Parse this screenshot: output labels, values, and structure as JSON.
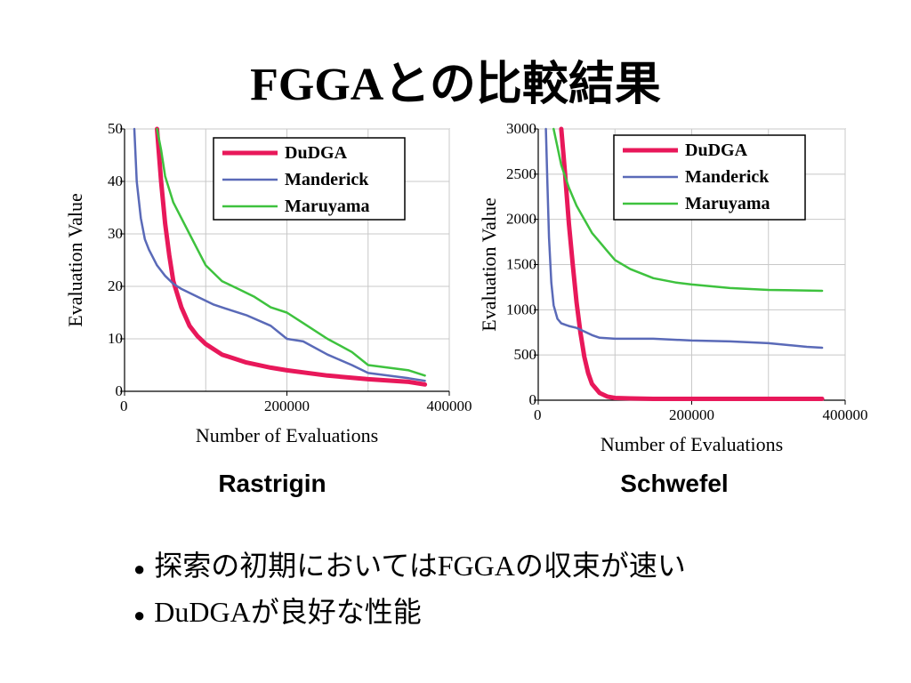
{
  "title": "FGGAとの比較結果",
  "charts": [
    {
      "caption": "Rastrigin"
    },
    {
      "caption": "Schwefel"
    }
  ],
  "bullets": [
    "探索の初期においてはFGGAの収束が速い",
    "DuDGAが良好な性能"
  ],
  "colors": {
    "DuDGA": "#e8185a",
    "Manderick": "#5a6ab8",
    "Maruyama": "#3ec23e"
  },
  "chart_data": [
    {
      "type": "line",
      "title": "",
      "xlabel": "Number of Evaluations",
      "ylabel": "Evaluation Value",
      "xlim": [
        0,
        400000
      ],
      "ylim": [
        0,
        50
      ],
      "xticks": [
        0,
        200000,
        400000
      ],
      "yticks": [
        0,
        10,
        20,
        30,
        40,
        50
      ],
      "grid": true,
      "legend": "top-right",
      "series": [
        {
          "name": "DuDGA",
          "x": [
            40000,
            45000,
            50000,
            55000,
            60000,
            70000,
            80000,
            90000,
            100000,
            120000,
            150000,
            180000,
            200000,
            250000,
            300000,
            350000,
            370000
          ],
          "y": [
            50,
            40,
            32,
            26,
            21,
            16,
            12.5,
            10.5,
            9,
            7,
            5.5,
            4.5,
            4,
            3,
            2.3,
            1.8,
            1.3
          ]
        },
        {
          "name": "Manderick",
          "x": [
            12000,
            15000,
            20000,
            25000,
            30000,
            40000,
            50000,
            60000,
            70000,
            90000,
            110000,
            130000,
            150000,
            180000,
            200000,
            220000,
            250000,
            280000,
            300000,
            350000,
            370000
          ],
          "y": [
            50,
            40,
            33,
            29,
            27,
            24,
            22,
            20.5,
            19.5,
            18,
            16.5,
            15.5,
            14.5,
            12.5,
            10,
            9.5,
            7,
            5,
            3.5,
            2.5,
            2
          ]
        },
        {
          "name": "Maruyama",
          "x": [
            40000,
            45000,
            50000,
            60000,
            70000,
            80000,
            90000,
            100000,
            120000,
            140000,
            160000,
            180000,
            200000,
            220000,
            250000,
            280000,
            300000,
            350000,
            370000
          ],
          "y": [
            50,
            46,
            41,
            36,
            33,
            30,
            27,
            24,
            21,
            19.5,
            18,
            16,
            15,
            13,
            10,
            7.5,
            5,
            4,
            3
          ]
        }
      ]
    },
    {
      "type": "line",
      "title": "",
      "xlabel": "Number of Evaluations",
      "ylabel": "Evaluation Value",
      "xlim": [
        0,
        400000
      ],
      "ylim": [
        0,
        3000
      ],
      "xticks": [
        0,
        200000,
        400000
      ],
      "yticks": [
        0,
        500,
        1000,
        1500,
        2000,
        2500,
        3000
      ],
      "grid": true,
      "legend": "top-right",
      "series": [
        {
          "name": "DuDGA",
          "x": [
            30000,
            35000,
            40000,
            45000,
            50000,
            55000,
            60000,
            65000,
            70000,
            80000,
            90000,
            100000,
            120000,
            150000,
            200000,
            300000,
            370000
          ],
          "y": [
            3000,
            2500,
            1950,
            1500,
            1080,
            750,
            480,
            300,
            180,
            80,
            40,
            25,
            20,
            15,
            15,
            15,
            15
          ]
        },
        {
          "name": "Manderick",
          "x": [
            10000,
            12000,
            14000,
            17000,
            20000,
            25000,
            30000,
            40000,
            50000,
            60000,
            70000,
            80000,
            100000,
            150000,
            200000,
            250000,
            300000,
            350000,
            370000
          ],
          "y": [
            3000,
            2400,
            1800,
            1300,
            1050,
            900,
            850,
            820,
            800,
            760,
            720,
            690,
            680,
            680,
            660,
            650,
            630,
            590,
            580
          ]
        },
        {
          "name": "Maruyama",
          "x": [
            20000,
            25000,
            30000,
            40000,
            50000,
            60000,
            70000,
            80000,
            90000,
            100000,
            120000,
            150000,
            180000,
            200000,
            250000,
            300000,
            370000
          ],
          "y": [
            3000,
            2800,
            2600,
            2350,
            2150,
            2000,
            1850,
            1750,
            1650,
            1550,
            1450,
            1350,
            1300,
            1280,
            1240,
            1220,
            1210
          ]
        }
      ]
    }
  ]
}
